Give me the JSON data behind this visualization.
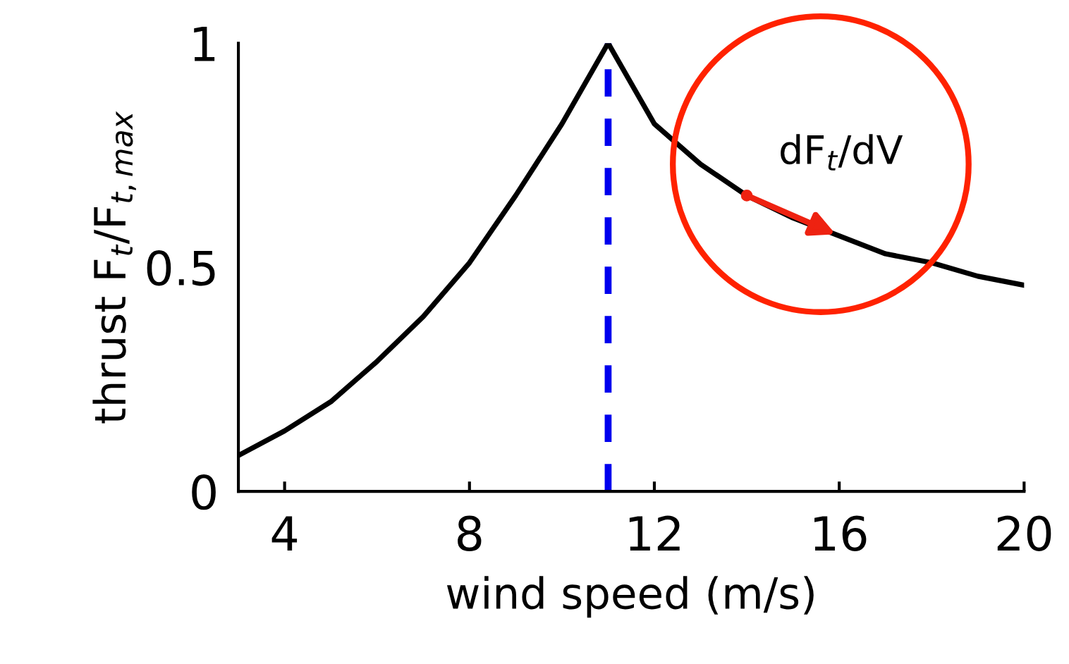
{
  "chart_data": {
    "type": "line",
    "xlabel": "wind speed (m/s)",
    "ylabel": "thrust F$_{t}$/F$_{t,max}$",
    "x": [
      3,
      4,
      5,
      6,
      7,
      8,
      9,
      10,
      11,
      12,
      13,
      14,
      15,
      16,
      17,
      18,
      19,
      20
    ],
    "series": [
      {
        "color": "#000000",
        "values": [
          0.08,
          0.135,
          0.2,
          0.29,
          0.39,
          0.51,
          0.66,
          0.82,
          1.0,
          0.82,
          0.73,
          0.66,
          0.61,
          0.57,
          0.53,
          0.51,
          0.48,
          0.46
        ]
      }
    ],
    "xlim": [
      3,
      20
    ],
    "xticks": [
      4,
      8,
      12,
      16,
      20
    ],
    "ylim": [
      0,
      1
    ],
    "yticks": [
      0,
      0.5,
      1
    ],
    "ref_lines": [
      {
        "axis": "x",
        "value": 11,
        "color": "#0000ee",
        "line_style": "dashed"
      }
    ],
    "annotations": [
      {
        "text": "dF$_{t}$/dV",
        "x": 14,
        "y": 0.66
      }
    ],
    "grid": false,
    "legend": false,
    "marker": "none",
    "line_style": "solid"
  }
}
